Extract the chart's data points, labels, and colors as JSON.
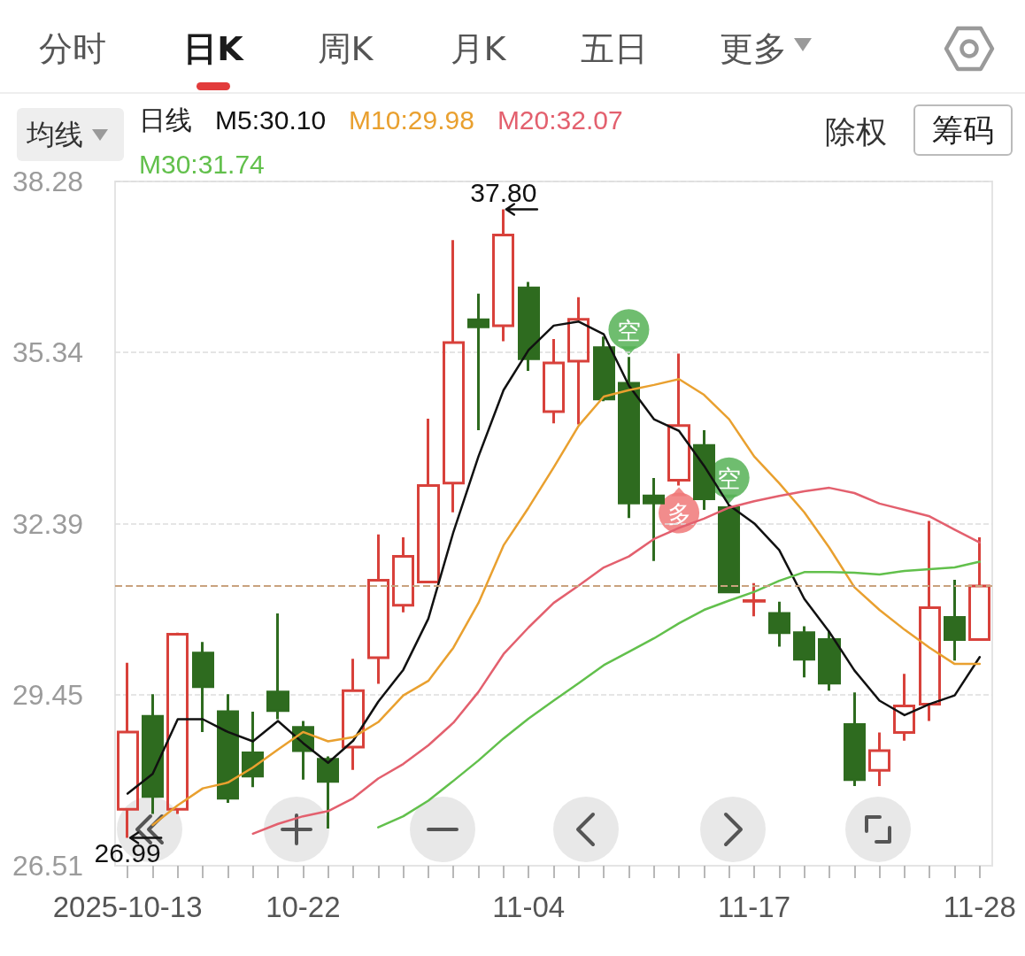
{
  "chart_data": {
    "type": "candlestick",
    "categories": [
      "2025-10-13",
      null,
      null,
      null,
      null,
      null,
      null,
      "10-22",
      null,
      null,
      null,
      null,
      null,
      null,
      null,
      null,
      "11-04",
      null,
      null,
      null,
      null,
      null,
      null,
      null,
      null,
      "11-17",
      null,
      null,
      null,
      null,
      null,
      null,
      null,
      null,
      "11-28"
    ],
    "ohlc": [
      [
        27.48,
        30.0,
        26.99,
        28.81
      ],
      [
        29.08,
        29.46,
        27.4,
        27.7
      ],
      [
        27.48,
        30.52,
        27.4,
        30.49
      ],
      [
        30.17,
        30.36,
        28.81,
        29.59
      ],
      [
        29.16,
        29.46,
        27.59,
        27.67
      ],
      [
        28.45,
        29.16,
        27.86,
        28.05
      ],
      [
        29.5,
        30.85,
        29.03,
        29.18
      ],
      [
        28.89,
        29.0,
        27.99,
        28.49
      ],
      [
        28.34,
        28.39,
        27.15,
        27.96
      ],
      [
        28.55,
        30.07,
        28.16,
        29.52
      ],
      [
        30.09,
        32.21,
        29.64,
        31.42
      ],
      [
        30.99,
        32.16,
        30.87,
        31.83
      ],
      [
        31.39,
        34.2,
        31.39,
        33.05
      ],
      [
        33.09,
        37.27,
        32.59,
        35.51
      ],
      [
        35.9,
        36.35,
        34.0,
        35.78
      ],
      [
        35.8,
        37.8,
        35.53,
        37.36
      ],
      [
        36.45,
        36.55,
        35.02,
        35.23
      ],
      [
        34.32,
        35.57,
        34.12,
        35.16
      ],
      [
        35.19,
        36.29,
        34.1,
        35.91
      ],
      [
        35.42,
        35.61,
        34.5,
        34.54
      ],
      [
        34.81,
        35.26,
        32.49,
        32.75
      ],
      [
        32.87,
        33.18,
        31.75,
        32.75
      ],
      [
        33.14,
        35.32,
        33.05,
        34.08
      ],
      [
        33.74,
        34.0,
        32.63,
        32.82
      ],
      [
        32.67,
        32.71,
        31.2,
        31.22
      ],
      [
        31.06,
        31.37,
        30.8,
        31.07
      ],
      [
        30.85,
        31.05,
        30.28,
        30.52
      ],
      [
        30.52,
        30.63,
        29.75,
        30.06
      ],
      [
        30.4,
        30.55,
        29.52,
        29.65
      ],
      [
        28.94,
        29.49,
        27.88,
        27.99
      ],
      [
        28.15,
        28.8,
        27.88,
        28.49
      ],
      [
        28.8,
        29.81,
        28.66,
        29.26
      ],
      [
        29.29,
        32.44,
        29.0,
        30.95
      ],
      [
        30.78,
        31.43,
        30.04,
        30.4
      ],
      [
        30.4,
        32.16,
        30.4,
        31.32
      ]
    ],
    "colors": [
      "#d8413b",
      "#2e6b1f",
      "#d8413b",
      "#2e6b1f",
      "#2e6b1f",
      "#2e6b1f",
      "#2e6b1f",
      "#2e6b1f",
      "#2e6b1f",
      "#d8413b",
      "#d8413b",
      "#d8413b",
      "#d8413b",
      "#d8413b",
      "#2e6b1f",
      "#d8413b",
      "#2e6b1f",
      "#d8413b",
      "#d8413b",
      "#2e6b1f",
      "#2e6b1f",
      "#2e6b1f",
      "#d8413b",
      "#2e6b1f",
      "#2e6b1f",
      "#d8413b",
      "#2e6b1f",
      "#2e6b1f",
      "#2e6b1f",
      "#2e6b1f",
      "#d8413b",
      "#d8413b",
      "#d8413b",
      "#2e6b1f",
      "#d8413b"
    ],
    "series": [
      {
        "name": "M5:30.10",
        "type": "line",
        "color": "#111111",
        "values": [
          27.75,
          28.09,
          29.03,
          29.03,
          28.81,
          28.65,
          29.0,
          28.62,
          28.28,
          28.66,
          29.33,
          29.88,
          30.76,
          32.25,
          33.55,
          34.69,
          35.38,
          35.8,
          35.87,
          35.65,
          34.77,
          34.19,
          33.99,
          33.39,
          32.71,
          32.4,
          31.94,
          31.1,
          30.53,
          29.87,
          29.35,
          29.1,
          29.29,
          29.44,
          30.1
        ]
      },
      {
        "name": "M10:29.98",
        "type": "line",
        "color": "#e9a02f",
        "values": [
          null,
          27.21,
          27.55,
          27.84,
          27.94,
          28.2,
          28.51,
          28.81,
          28.65,
          28.72,
          28.98,
          29.44,
          29.69,
          30.26,
          31.03,
          32.02,
          32.67,
          33.36,
          34.08,
          34.58,
          34.69,
          34.78,
          34.88,
          34.61,
          34.19,
          33.55,
          33.09,
          32.59,
          31.98,
          31.3,
          30.91,
          30.57,
          30.26,
          29.98,
          29.98
        ]
      },
      {
        "name": "M20:32.07",
        "type": "line",
        "color": "#e3606e",
        "values": [
          null,
          null,
          null,
          null,
          null,
          27.06,
          27.23,
          27.36,
          27.45,
          27.67,
          28.01,
          28.26,
          28.58,
          28.97,
          29.5,
          30.15,
          30.61,
          31.03,
          31.33,
          31.64,
          31.83,
          32.13,
          32.32,
          32.48,
          32.67,
          32.78,
          32.87,
          32.95,
          33.01,
          32.92,
          32.74,
          32.63,
          32.52,
          32.29,
          32.07
        ]
      },
      {
        "name": "M30:31.74",
        "type": "line",
        "color": "#62c04c",
        "values": [
          null,
          null,
          null,
          null,
          null,
          null,
          null,
          null,
          null,
          null,
          27.17,
          27.36,
          27.63,
          27.97,
          28.32,
          28.7,
          29.04,
          29.35,
          29.65,
          29.96,
          30.19,
          30.42,
          30.68,
          30.91,
          31.07,
          31.22,
          31.41,
          31.56,
          31.56,
          31.55,
          31.52,
          31.58,
          31.61,
          31.64,
          31.74
        ]
      }
    ],
    "ylim": [
      26.51,
      38.28
    ],
    "yticks": [
      38.28,
      35.34,
      32.39,
      29.45,
      26.51
    ],
    "grid": "y",
    "legend": "top left",
    "legend_title": "日线",
    "marker": "none",
    "ref_lines": [
      {
        "axis": "y",
        "value": 31.32,
        "color": "#c9a27e",
        "line_style": "dashed"
      }
    ],
    "annotations": [
      "分时",
      "日K",
      "周K",
      "月K",
      "五日",
      "更多",
      "均线",
      "除权",
      "筹码",
      {
        "text": "37.80",
        "y": 37.8
      },
      {
        "text": "26.99",
        "y": 26.99
      },
      {
        "text": "空",
        "y": 35.26
      },
      {
        "text": "多",
        "y": 33.05
      },
      {
        "text": "空",
        "y": 32.71
      }
    ]
  }
}
